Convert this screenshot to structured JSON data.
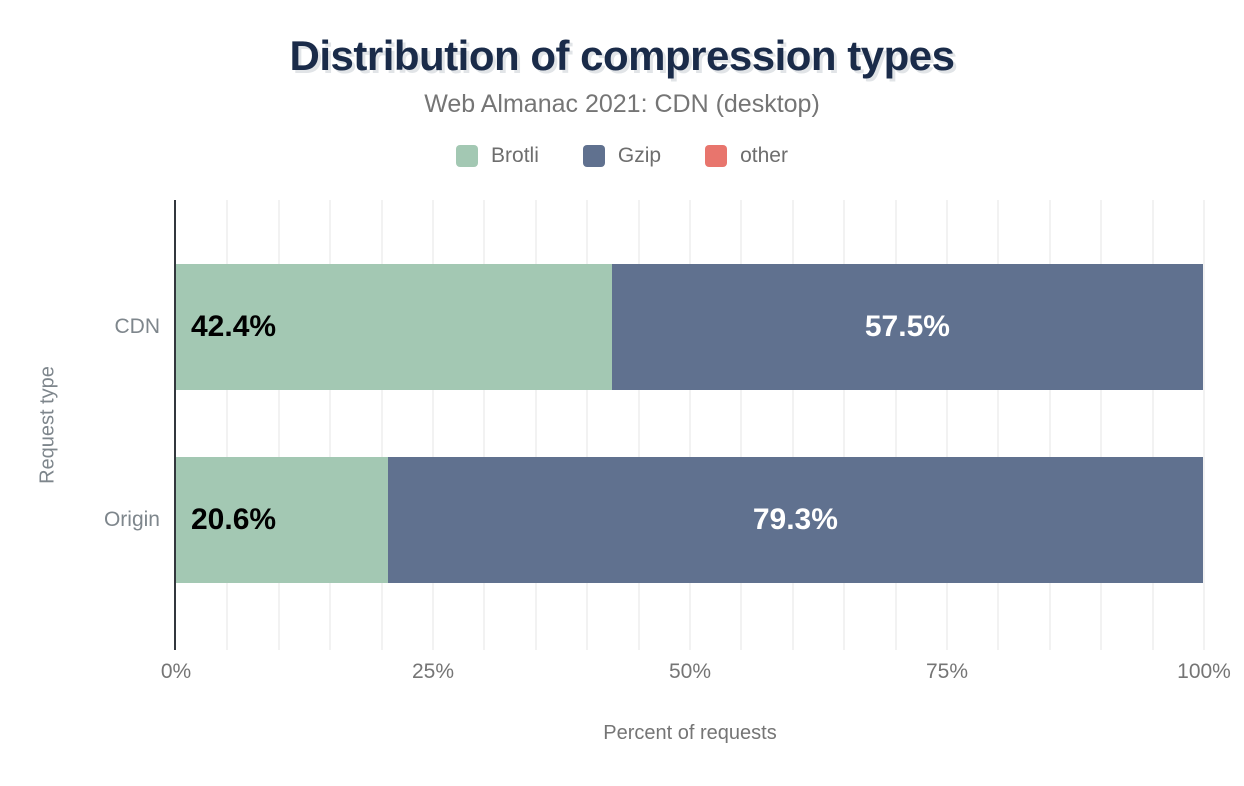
{
  "chart_data": {
    "type": "bar",
    "orientation": "horizontal",
    "stacked": true,
    "title": "Distribution of compression types",
    "subtitle": "Web Almanac 2021: CDN (desktop)",
    "xlabel": "Percent of requests",
    "ylabel": "Request type",
    "categories": [
      "CDN",
      "Origin"
    ],
    "series": [
      {
        "name": "Brotli",
        "color": "#a3c8b3",
        "value_label_color": "#000000",
        "values": [
          42.4,
          20.6
        ]
      },
      {
        "name": "Gzip",
        "color": "#60718f",
        "value_label_color": "#ffffff",
        "values": [
          57.5,
          79.3
        ]
      },
      {
        "name": "other",
        "color": "#e8756d",
        "value_label_color": "#ffffff",
        "values": [
          null,
          null
        ]
      }
    ],
    "xlim": [
      0,
      100
    ],
    "x_ticks": [
      {
        "value": 0,
        "label": "0%"
      },
      {
        "value": 25,
        "label": "25%"
      },
      {
        "value": 50,
        "label": "50%"
      },
      {
        "value": 75,
        "label": "75%"
      },
      {
        "value": 100,
        "label": "100%"
      }
    ],
    "grid": {
      "show": true,
      "step": 5,
      "color": "#f2f2f2"
    },
    "legend_position": "top",
    "colors": {
      "title": "#1a2b49",
      "subtitle": "#757575",
      "axis_text": "#7e868c",
      "tick_text": "#757575",
      "axis_line": "#33373d",
      "background": "#ffffff"
    }
  }
}
